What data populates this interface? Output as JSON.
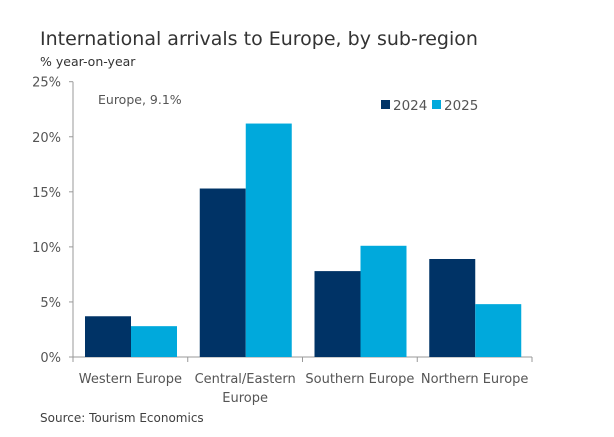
{
  "chart_data": {
    "type": "bar",
    "title": "International arrivals to Europe, by sub-region",
    "ylabel": "% year-on-year",
    "categories": [
      [
        "Western Europe"
      ],
      [
        "Central/Eastern",
        "Europe"
      ],
      [
        "Southern Europe"
      ],
      [
        "Northern Europe"
      ]
    ],
    "series": [
      {
        "name": "2024",
        "color": "#003366",
        "values": [
          3.7,
          15.3,
          7.8,
          8.9
        ]
      },
      {
        "name": "2025",
        "color": "#00a9dc",
        "values": [
          2.8,
          21.2,
          10.1,
          4.8
        ]
      }
    ],
    "ylim": [
      0,
      25
    ],
    "yticks": [
      0,
      5,
      10,
      15,
      20,
      25
    ],
    "ytick_labels": [
      "0%",
      "5%",
      "10%",
      "15%",
      "20%",
      "25%"
    ],
    "annotation": "Europe, 9.1%",
    "legend": "top-right",
    "grid": false,
    "source": "Source: Tourism Economics"
  }
}
